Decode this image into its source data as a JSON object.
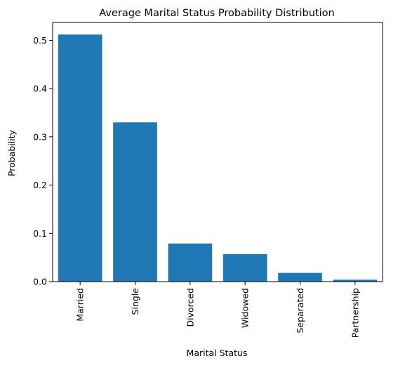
{
  "chart_data": {
    "type": "bar",
    "title": "Average Marital Status Probability Distribution",
    "xlabel": "Marital Status",
    "ylabel": "Probability",
    "categories": [
      "Married",
      "Single",
      "Divorced",
      "Widowed",
      "Separated",
      "Partnership"
    ],
    "values": [
      0.512,
      0.33,
      0.079,
      0.057,
      0.018,
      0.004
    ],
    "ylim": [
      0,
      0.537
    ],
    "yticks": [
      "0.0",
      "0.1",
      "0.2",
      "0.3",
      "0.4",
      "0.5"
    ],
    "grid": false,
    "legend": "none",
    "bar_color": "#1f77b4"
  }
}
